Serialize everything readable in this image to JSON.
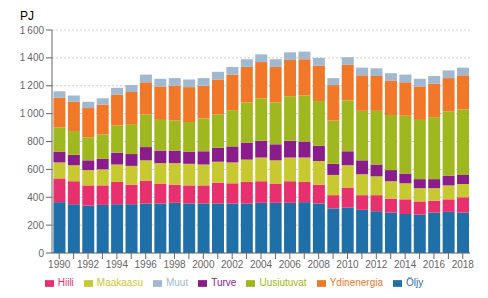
{
  "chart_data": {
    "type": "bar",
    "stacked": true,
    "ylabel": "PJ",
    "categories": [
      "1990",
      null,
      "1992",
      null,
      "1994",
      null,
      "1996",
      null,
      "1998",
      null,
      "2000",
      null,
      "2002",
      null,
      "2004",
      null,
      "2006",
      null,
      "2008",
      null,
      "2010",
      null,
      "2012",
      null,
      "2014",
      null,
      "2016",
      null,
      "2018"
    ],
    "series": [
      {
        "name": "Öljy",
        "color": "#1f6fa8",
        "values": [
          365,
          350,
          340,
          345,
          350,
          350,
          355,
          355,
          360,
          355,
          355,
          355,
          355,
          355,
          360,
          360,
          360,
          365,
          355,
          320,
          325,
          310,
          300,
          290,
          280,
          275,
          290,
          295,
          290
        ]
      },
      {
        "name": "Hiili",
        "color": "#e8306e",
        "values": [
          170,
          165,
          145,
          140,
          160,
          140,
          165,
          140,
          130,
          130,
          130,
          150,
          145,
          155,
          155,
          135,
          155,
          145,
          135,
          95,
          145,
          105,
          115,
          100,
          105,
          95,
          85,
          90,
          110
        ]
      },
      {
        "name": "Maakaasu",
        "color": "#c8c830",
        "values": [
          115,
          115,
          110,
          115,
          125,
          135,
          145,
          150,
          155,
          155,
          150,
          150,
          150,
          160,
          170,
          170,
          170,
          175,
          170,
          145,
          160,
          150,
          135,
          125,
          115,
          95,
          90,
          100,
          95
        ]
      },
      {
        "name": "Turve",
        "color": "#8b1c8b",
        "values": [
          75,
          75,
          70,
          75,
          85,
          85,
          95,
          90,
          90,
          85,
          95,
          100,
          115,
          120,
          120,
          115,
          120,
          115,
          110,
          80,
          100,
          100,
          85,
          80,
          70,
          65,
          65,
          70,
          65
        ]
      },
      {
        "name": "Uusiutuvat",
        "color": "#a0b820",
        "values": [
          175,
          170,
          165,
          175,
          195,
          215,
          235,
          220,
          215,
          215,
          235,
          240,
          260,
          290,
          305,
          300,
          320,
          330,
          320,
          310,
          365,
          355,
          385,
          395,
          415,
          425,
          445,
          460,
          470
        ]
      },
      {
        "name": "Ydinenergia",
        "color": "#f07828",
        "values": [
          215,
          210,
          210,
          215,
          220,
          230,
          230,
          240,
          250,
          250,
          235,
          250,
          255,
          255,
          260,
          255,
          260,
          260,
          255,
          255,
          255,
          255,
          250,
          245,
          240,
          240,
          240,
          240,
          245
        ]
      },
      {
        "name": "Muut",
        "color": "#a0b8d0",
        "values": [
          45,
          45,
          45,
          45,
          50,
          50,
          55,
          55,
          55,
          55,
          55,
          55,
          55,
          55,
          55,
          55,
          55,
          55,
          55,
          50,
          55,
          55,
          55,
          55,
          55,
          55,
          55,
          55,
          55
        ]
      }
    ],
    "ylim": [
      0,
      1600
    ],
    "yticks": [
      0,
      200,
      400,
      600,
      800,
      {
        "value": 1000,
        "label": "1 000"
      },
      {
        "value": 1200,
        "label": "1 200"
      },
      {
        "value": 1400,
        "label": "1 400"
      },
      {
        "value": 1600,
        "label": "1 600"
      }
    ],
    "grid": true,
    "legend": "bottom"
  }
}
